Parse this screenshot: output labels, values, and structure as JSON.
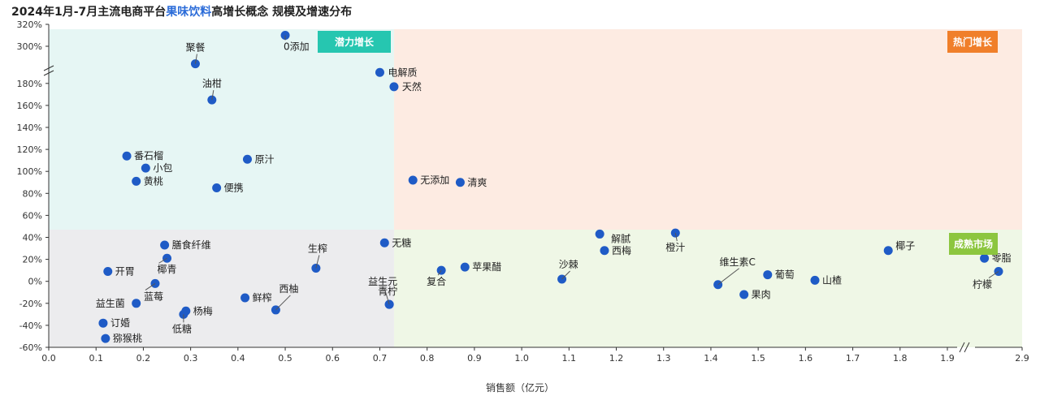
{
  "title": {
    "prefix": "2024年1月-7月主流电商平台",
    "highlight": "果味饮料",
    "suffix": "高增长概念 规模及增速分布"
  },
  "chart_data": {
    "type": "scatter",
    "title": "2024年1月-7月主流电商平台果味饮料高增长概念 规模及增速分布",
    "xlabel": "销售额（亿元）",
    "ylabel": "",
    "x_ticks": [
      "0.0",
      "0.1",
      "0.2",
      "0.3",
      "0.4",
      "0.5",
      "0.6",
      "0.7",
      "0.8",
      "0.9",
      "1.0",
      "1.1",
      "1.2",
      "1.3",
      "1.4",
      "1.5",
      "1.6",
      "1.7",
      "1.8",
      "1.9",
      "2.9"
    ],
    "y_ticks": [
      "-60%",
      "-40%",
      "-20%",
      "0%",
      "20%",
      "40%",
      "60%",
      "80%",
      "100%",
      "120%",
      "140%",
      "160%",
      "180%",
      "300%",
      "320%"
    ],
    "x_axis_break": [
      1.95,
      2.8
    ],
    "y_axis_break": [
      190,
      290
    ],
    "xlim": [
      0,
      2.9
    ],
    "ylim": [
      -60,
      320
    ],
    "quadrants": [
      {
        "name": "潜力增长",
        "color": "#26c6b0",
        "bg": "#e6f6f4"
      },
      {
        "name": "热门增长",
        "color": "#f07f2a",
        "bg": "#fdebe2"
      },
      {
        "name": "成熟市场",
        "color": "#8cc63f",
        "bg": "#eff7e6"
      },
      {
        "name": "",
        "color": "",
        "bg": "#ececee"
      }
    ],
    "point_color": "#1f5bc6",
    "points": [
      {
        "label": "0添加",
        "x": 0.5,
        "y": 310
      },
      {
        "label": "聚餐",
        "x": 0.31,
        "y": 284
      },
      {
        "label": "电解质",
        "x": 0.7,
        "y": 190
      },
      {
        "label": "天然",
        "x": 0.73,
        "y": 177
      },
      {
        "label": "油柑",
        "x": 0.345,
        "y": 165
      },
      {
        "label": "番石榴",
        "x": 0.165,
        "y": 114
      },
      {
        "label": "原汁",
        "x": 0.42,
        "y": 111
      },
      {
        "label": "小包",
        "x": 0.205,
        "y": 103
      },
      {
        "label": "黄桃",
        "x": 0.185,
        "y": 91
      },
      {
        "label": "无添加",
        "x": 0.77,
        "y": 92
      },
      {
        "label": "清爽",
        "x": 0.87,
        "y": 90
      },
      {
        "label": "便携",
        "x": 0.355,
        "y": 85
      },
      {
        "label": "解腻",
        "x": 1.165,
        "y": 43
      },
      {
        "label": "橙汁",
        "x": 1.325,
        "y": 44
      },
      {
        "label": "无糖",
        "x": 0.71,
        "y": 35
      },
      {
        "label": "膳食纤维",
        "x": 0.245,
        "y": 33
      },
      {
        "label": "西梅",
        "x": 1.175,
        "y": 28
      },
      {
        "label": "椰子",
        "x": 1.775,
        "y": 28
      },
      {
        "label": "零脂",
        "x": 2.82,
        "y": 21
      },
      {
        "label": "椰青",
        "x": 0.25,
        "y": 21
      },
      {
        "label": "生榨",
        "x": 0.565,
        "y": 12
      },
      {
        "label": "苹果醋",
        "x": 0.88,
        "y": 13
      },
      {
        "label": "开胃",
        "x": 0.125,
        "y": 9
      },
      {
        "label": "复合",
        "x": 0.83,
        "y": 10
      },
      {
        "label": "柠檬",
        "x": 2.85,
        "y": 9
      },
      {
        "label": "葡萄",
        "x": 1.52,
        "y": 6
      },
      {
        "label": "沙棘",
        "x": 1.085,
        "y": 2
      },
      {
        "label": "山楂",
        "x": 1.62,
        "y": 1
      },
      {
        "label": "维生素C",
        "x": 1.415,
        "y": -3
      },
      {
        "label": "蓝莓",
        "x": 0.225,
        "y": -2
      },
      {
        "label": "果肉",
        "x": 1.47,
        "y": -12
      },
      {
        "label": "鲜榨",
        "x": 0.415,
        "y": -15
      },
      {
        "label": "益生菌",
        "x": 0.185,
        "y": -20
      },
      {
        "label": "青柠",
        "x": 0.72,
        "y": -21
      },
      {
        "label": "益生元",
        "x": 0.72,
        "y": -21
      },
      {
        "label": "西柚",
        "x": 0.48,
        "y": -26
      },
      {
        "label": "杨梅",
        "x": 0.29,
        "y": -27
      },
      {
        "label": "低糖",
        "x": 0.285,
        "y": -30
      },
      {
        "label": "订婚",
        "x": 0.115,
        "y": -38
      },
      {
        "label": "猕猴桃",
        "x": 0.12,
        "y": -52
      }
    ]
  }
}
